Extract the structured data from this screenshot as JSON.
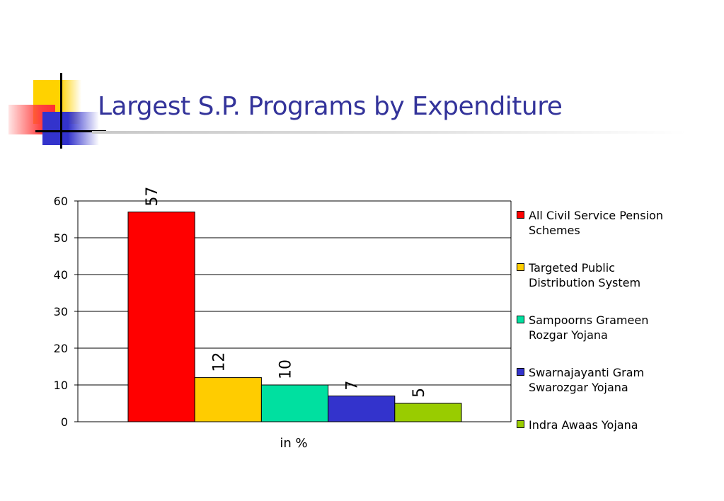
{
  "slide": {
    "title": "Largest S.P. Programs by Expenditure"
  },
  "chart_data": {
    "type": "bar",
    "categories": [
      "in %"
    ],
    "series": [
      {
        "name": "All Civil Service Pension Schemes",
        "values": [
          57
        ],
        "color": "#ff0000"
      },
      {
        "name": "Targeted Public Distribution System",
        "values": [
          12
        ],
        "color": "#ffcc00"
      },
      {
        "name": "Sampoorns Grameen Rozgar Yojana",
        "values": [
          10
        ],
        "color": "#00e0a0"
      },
      {
        "name": "Swarnajayanti Gram Swarozgar Yojana",
        "values": [
          7
        ],
        "color": "#3333cc"
      },
      {
        "name": "Indra Awaas Yojana",
        "values": [
          5
        ],
        "color": "#99cc00"
      }
    ],
    "data_labels": [
      "57",
      "12",
      "10",
      "7",
      "5"
    ],
    "xlabel": "in %",
    "ylabel": "",
    "ylim": [
      0,
      60
    ],
    "yticks": [
      0,
      10,
      20,
      30,
      40,
      50,
      60
    ],
    "grid": true,
    "legend": "right"
  }
}
